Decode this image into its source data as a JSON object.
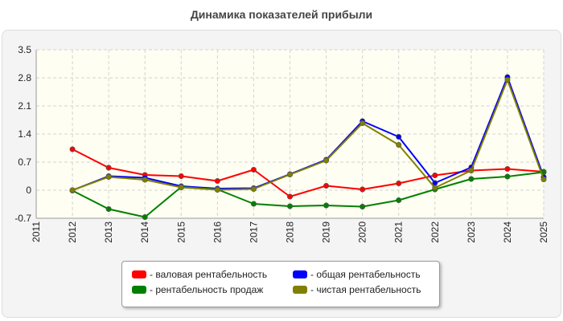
{
  "chart_data": {
    "type": "line",
    "title": "Динамика показателей прибыли",
    "x": [
      "2011",
      "2012",
      "2013",
      "2014",
      "2015",
      "2016",
      "2017",
      "2018",
      "2019",
      "2020",
      "2021",
      "2022",
      "2023",
      "2024",
      "2025"
    ],
    "ylim": [
      -0.7,
      3.5
    ],
    "yticks": [
      "3.5",
      "2.8",
      "2.1",
      "1.4",
      "0.7",
      "0",
      "-0.7"
    ],
    "grid": true,
    "legend_position": "bottom",
    "series": [
      {
        "name": "- валовая рентабельность",
        "color": "#ff0000",
        "values": [
          null,
          1.02,
          0.56,
          0.38,
          0.35,
          0.23,
          0.51,
          -0.16,
          0.11,
          0.02,
          0.17,
          0.37,
          0.49,
          0.53,
          0.46
        ]
      },
      {
        "name": "- общая рентабельность",
        "color": "#0000ff",
        "values": [
          null,
          0.0,
          0.35,
          0.31,
          0.1,
          0.04,
          0.05,
          0.4,
          0.76,
          1.72,
          1.33,
          0.18,
          0.57,
          2.82,
          0.33
        ]
      },
      {
        "name": "- рентабельность продаж",
        "color": "#008000",
        "values": [
          null,
          -0.01,
          -0.47,
          -0.67,
          0.08,
          0.02,
          -0.34,
          -0.4,
          -0.38,
          -0.41,
          -0.25,
          0.02,
          0.28,
          0.34,
          0.45
        ]
      },
      {
        "name": "- чистая рентабельность",
        "color": "#808000",
        "values": [
          null,
          0.0,
          0.33,
          0.26,
          0.07,
          0.01,
          0.03,
          0.39,
          0.74,
          1.67,
          1.13,
          0.06,
          0.49,
          2.75,
          0.27
        ]
      }
    ]
  }
}
